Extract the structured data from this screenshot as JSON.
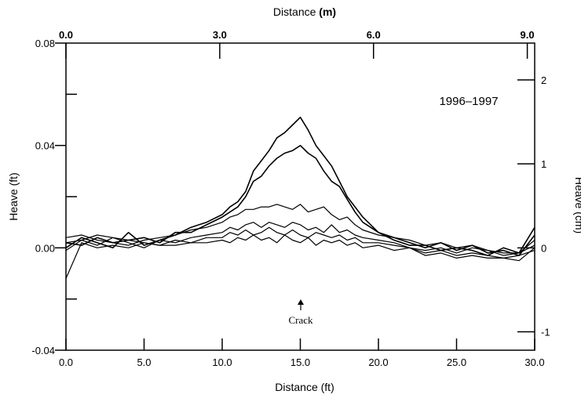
{
  "chart_data": {
    "type": "line",
    "annotation": "1996–1997",
    "crack_label": "Crack",
    "crack_x": 15.0,
    "x_bottom": {
      "label": "Distance (ft)",
      "range": [
        0,
        30
      ],
      "ticks": [
        0,
        5,
        10,
        15,
        20,
        25,
        30
      ],
      "tick_labels": [
        "0.0",
        "5.0",
        "10.0",
        "15.0",
        "20.0",
        "25.0",
        "30.0"
      ]
    },
    "x_top": {
      "label_prefix": "Distance ",
      "label_unit": "(m)",
      "tick_labels": [
        "0.0",
        "3.0",
        "6.0",
        "9.0"
      ],
      "tick_values_m": [
        0,
        3,
        6,
        9
      ]
    },
    "y_left": {
      "label": "Heave (ft)",
      "range": [
        -0.04,
        0.08
      ],
      "ticks": [
        -0.04,
        0.0,
        0.04,
        0.08
      ],
      "tick_labels": [
        "-0.04",
        "0.00",
        "0.04",
        "0.08"
      ],
      "minor_ticks": [
        -0.02,
        0.02,
        0.06
      ]
    },
    "y_right": {
      "label": "Heave (cm)",
      "ticks": [
        -1,
        0,
        1,
        2
      ],
      "tick_labels": [
        "-1",
        "0",
        "1",
        "2"
      ]
    },
    "grid": false,
    "x": [
      0,
      1,
      2,
      3,
      4,
      5,
      6,
      7,
      8,
      9,
      10,
      10.5,
      11,
      11.5,
      12,
      12.5,
      13,
      13.5,
      14,
      14.5,
      15,
      15.5,
      16,
      16.5,
      17,
      17.5,
      18,
      18.5,
      19,
      20,
      21,
      22,
      23,
      24,
      25,
      26,
      27,
      28,
      29,
      30
    ],
    "series": [
      {
        "values": [
          0.0,
          0.004,
          0.002,
          0.0,
          0.006,
          0.001,
          0.003,
          0.005,
          0.008,
          0.01,
          0.013,
          0.016,
          0.018,
          0.022,
          0.03,
          0.034,
          0.038,
          0.043,
          0.045,
          0.048,
          0.051,
          0.046,
          0.04,
          0.036,
          0.032,
          0.026,
          0.02,
          0.016,
          0.012,
          0.006,
          0.004,
          0.002,
          0.0,
          0.002,
          -0.001,
          0.001,
          -0.002,
          -0.001,
          -0.003,
          0.005
        ]
      },
      {
        "values": [
          0.002,
          0.001,
          0.004,
          0.002,
          0.003,
          0.004,
          0.002,
          0.006,
          0.006,
          0.009,
          0.012,
          0.014,
          0.016,
          0.02,
          0.026,
          0.028,
          0.032,
          0.035,
          0.037,
          0.038,
          0.04,
          0.037,
          0.035,
          0.03,
          0.026,
          0.024,
          0.019,
          0.014,
          0.01,
          0.006,
          0.003,
          0.001,
          0.001,
          -0.001,
          0.0,
          -0.001,
          -0.003,
          0.0,
          -0.002,
          0.008
        ]
      },
      {
        "values": [
          0.004,
          0.005,
          0.003,
          0.002,
          0.001,
          0.003,
          0.004,
          0.005,
          0.007,
          0.008,
          0.01,
          0.012,
          0.013,
          0.015,
          0.015,
          0.016,
          0.016,
          0.017,
          0.016,
          0.015,
          0.017,
          0.014,
          0.015,
          0.016,
          0.013,
          0.011,
          0.012,
          0.009,
          0.007,
          0.005,
          0.004,
          0.003,
          0.001,
          0.002,
          0.0,
          0.001,
          -0.001,
          -0.002,
          -0.002,
          0.003
        ]
      },
      {
        "values": [
          -0.001,
          0.003,
          0.005,
          0.004,
          0.002,
          0.0,
          0.003,
          0.002,
          0.004,
          0.005,
          0.006,
          0.008,
          0.007,
          0.009,
          0.01,
          0.008,
          0.01,
          0.009,
          0.008,
          0.01,
          0.009,
          0.007,
          0.008,
          0.006,
          0.009,
          0.006,
          0.007,
          0.005,
          0.004,
          0.003,
          0.002,
          0.0,
          -0.001,
          0.0,
          -0.002,
          0.0,
          -0.001,
          -0.003,
          -0.002,
          0.001
        ]
      },
      {
        "values": [
          0.002,
          0.003,
          0.001,
          0.004,
          0.003,
          0.002,
          0.001,
          0.003,
          0.002,
          0.004,
          0.004,
          0.006,
          0.005,
          0.007,
          0.005,
          0.006,
          0.008,
          0.006,
          0.005,
          0.007,
          0.005,
          0.004,
          0.006,
          0.005,
          0.004,
          0.005,
          0.003,
          0.004,
          0.002,
          0.002,
          0.001,
          0.0,
          -0.002,
          -0.001,
          -0.003,
          -0.002,
          -0.003,
          -0.004,
          -0.003,
          -0.001
        ]
      },
      {
        "values": [
          -0.012,
          0.002,
          0.0,
          0.001,
          0.0,
          0.002,
          0.001,
          0.001,
          0.002,
          0.002,
          0.003,
          0.002,
          0.004,
          0.003,
          0.005,
          0.003,
          0.004,
          0.002,
          0.005,
          0.003,
          0.002,
          0.004,
          0.001,
          0.003,
          0.002,
          0.003,
          0.001,
          0.002,
          0.0,
          0.001,
          -0.001,
          0.0,
          -0.003,
          -0.002,
          -0.004,
          -0.003,
          -0.004,
          -0.004,
          -0.005,
          0.0
        ]
      }
    ]
  }
}
